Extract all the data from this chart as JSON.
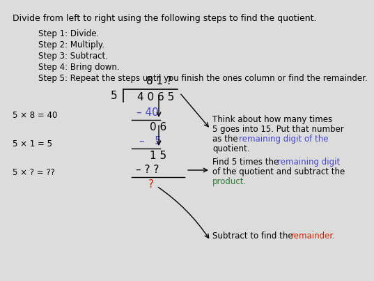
{
  "bg_color": "#dcdcdc",
  "title_text": "Divide from left to right using the following steps to find the quotient.",
  "steps": [
    "Step 1: Divide.",
    "Step 2: Multiply.",
    "Step 3: Subtract.",
    "Step 4: Bring down.",
    "Step 5: Repeat the steps until you finish the ones column or find the remainder."
  ],
  "black": "#000000",
  "dark_gray": "#222222",
  "red": "#cc2200",
  "blue_purple": "#4444cc",
  "green": "#2e7d32",
  "step_color": "#333333",
  "title_fs": 9.0,
  "step_fs": 8.5,
  "div_fs": 11.0,
  "label_fs": 8.5,
  "annot_fs": 8.5
}
